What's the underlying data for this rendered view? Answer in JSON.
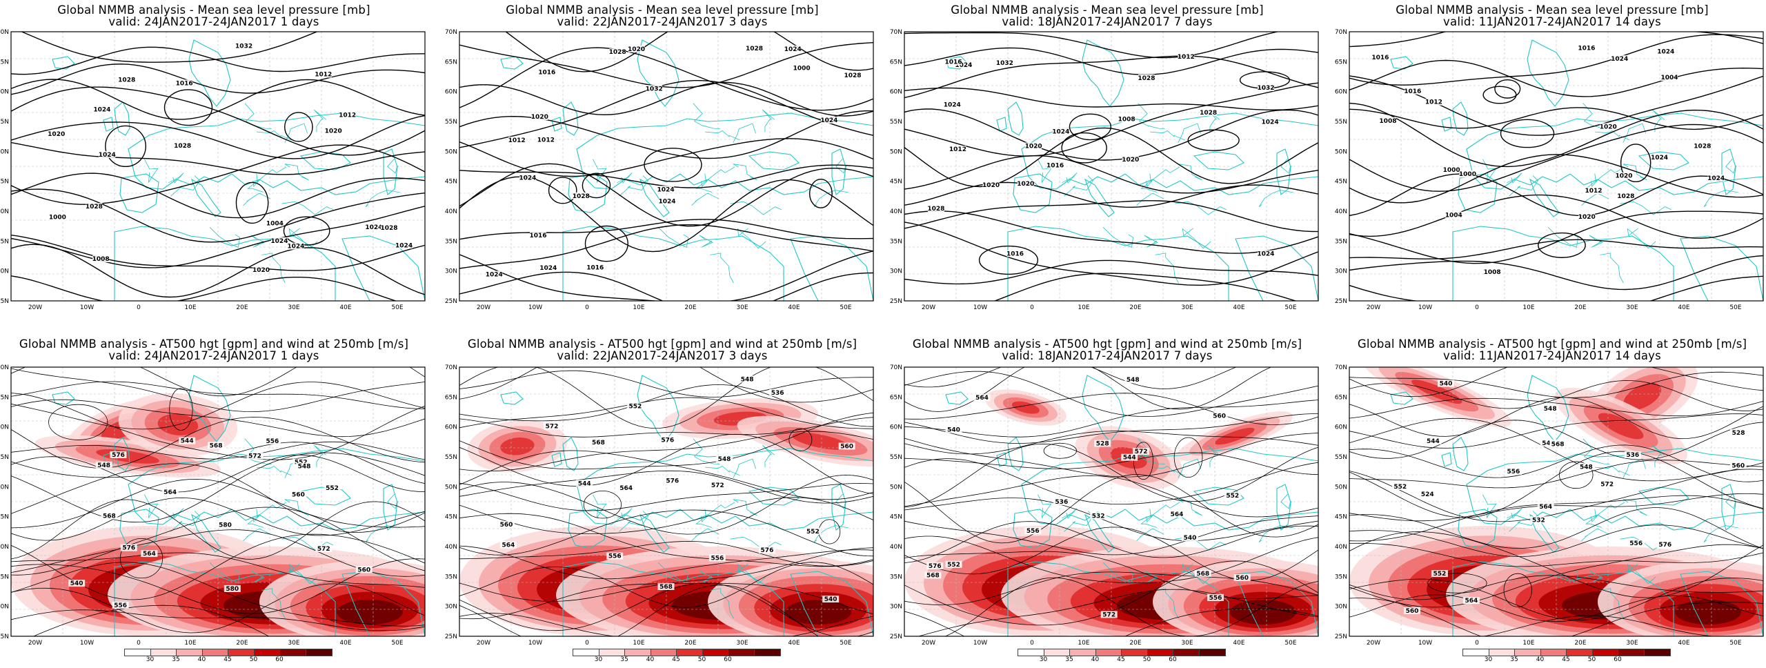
{
  "panels_top": [
    {
      "title": "Global NMMB analysis - Mean sea level pressure [mb]",
      "valid": "valid: 24JAN2017-24JAN2017   1 days",
      "labels": [
        "1008",
        "1004",
        "1000",
        "1024",
        "1020",
        "1024",
        "1028",
        "1032",
        "1024",
        "1028",
        "1012",
        "1028",
        "1020",
        "1012",
        "1016",
        "1024",
        "1024",
        "1024",
        "1020",
        "1028"
      ]
    },
    {
      "title": "Global NMMB analysis - Mean sea level pressure [mb]",
      "valid": "valid: 22JAN2017-24JAN2017   3 days",
      "labels": [
        "1000",
        "1012",
        "1016",
        "1024",
        "1028",
        "1024",
        "1020",
        "1032",
        "1028",
        "1024",
        "1012",
        "1016",
        "1020",
        "1024",
        "1024",
        "1028",
        "1028",
        "1024",
        "1016",
        "1024"
      ]
    },
    {
      "title": "Global NMMB analysis - Mean sea level pressure [mb]",
      "valid": "valid: 18JAN2017-24JAN2017   7 days",
      "labels": [
        "1008",
        "1012",
        "1016",
        "1020",
        "1024",
        "1028",
        "1032",
        "1024",
        "1020",
        "1012",
        "1016",
        "1024",
        "1028",
        "1032",
        "1028",
        "1024",
        "1020",
        "1016",
        "1020",
        "1024"
      ]
    },
    {
      "title": "Global NMMB analysis - Mean sea level pressure [mb]",
      "valid": "valid: 11JAN2017-24JAN2017   14 days",
      "labels": [
        "1000",
        "1004",
        "1008",
        "1012",
        "1016",
        "1020",
        "1024",
        "1000",
        "1004",
        "1008",
        "1012",
        "1016",
        "1020",
        "1024",
        "1028",
        "1024",
        "1020",
        "1016",
        "1024",
        "1028"
      ]
    }
  ],
  "panels_bottom": [
    {
      "title": "Global NMMB analysis - AT500 hgt [gpm] and wind at 250mb [m/s]",
      "valid": "valid: 24JAN2017-24JAN2017   1 days",
      "labels": [
        "540",
        "544",
        "548",
        "552",
        "556",
        "560",
        "564",
        "568",
        "572",
        "576",
        "580",
        "548",
        "552",
        "556",
        "560",
        "564",
        "568",
        "572",
        "576",
        "580"
      ]
    },
    {
      "title": "Global NMMB analysis - AT500 hgt [gpm] and wind at 250mb [m/s]",
      "valid": "valid: 22JAN2017-24JAN2017   3 days",
      "labels": [
        "536",
        "540",
        "544",
        "548",
        "552",
        "556",
        "560",
        "564",
        "568",
        "572",
        "576",
        "548",
        "552",
        "556",
        "560",
        "564",
        "568",
        "572",
        "576",
        "576"
      ]
    },
    {
      "title": "Global NMMB analysis - AT500 hgt [gpm] and wind at 250mb [m/s]",
      "valid": "valid: 18JAN2017-24JAN2017   7 days",
      "labels": [
        "528",
        "532",
        "536",
        "540",
        "544",
        "548",
        "552",
        "556",
        "560",
        "564",
        "568",
        "572",
        "576",
        "540",
        "552",
        "556",
        "560",
        "564",
        "568",
        "572"
      ]
    },
    {
      "title": "Global NMMB analysis - AT500 hgt [gpm] and wind at 250mb [m/s]",
      "valid": "valid: 11JAN2017-24JAN2017   14 days",
      "labels": [
        "524",
        "528",
        "532",
        "536",
        "540",
        "544",
        "548",
        "552",
        "556",
        "560",
        "564",
        "568",
        "572",
        "576",
        "544",
        "548",
        "552",
        "556",
        "560",
        "564"
      ]
    }
  ],
  "axes": {
    "lat_labels": [
      "70N",
      "65N",
      "60N",
      "55N",
      "50N",
      "45N",
      "40N",
      "35N",
      "30N",
      "25N"
    ],
    "lon_labels": [
      "20W",
      "10W",
      "0",
      "10E",
      "20E",
      "30E",
      "40E",
      "50E"
    ]
  },
  "colorbar": {
    "labels": [
      "30",
      "35",
      "40",
      "45",
      "50",
      "60"
    ],
    "colors": [
      "#ffffff",
      "#fce0e0",
      "#f8b0b0",
      "#f27a7a",
      "#e53030",
      "#c80000",
      "#8a0000",
      "#5a0000"
    ]
  },
  "colors": {
    "coast": "#1fc7c7",
    "isoline": "#000000",
    "frame": "#000000",
    "grid": "#bbbbbb"
  }
}
